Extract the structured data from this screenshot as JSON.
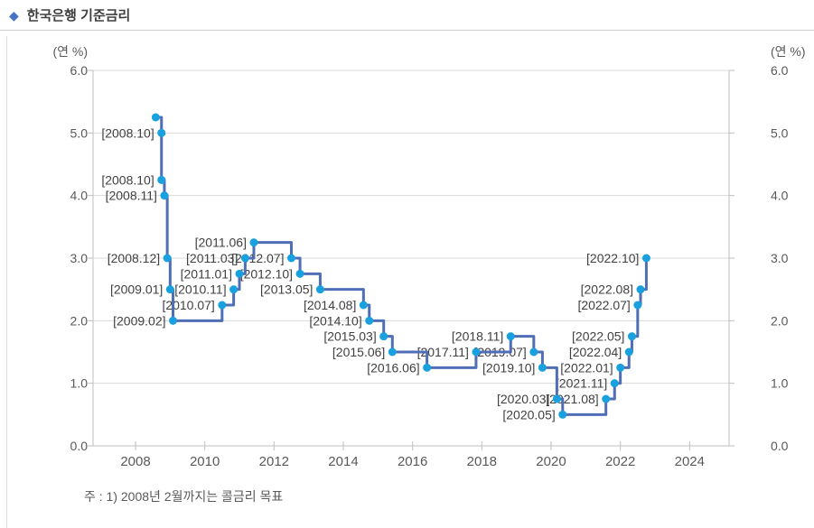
{
  "header": {
    "icon": "diamond-icon",
    "title": "한국은행 기준금리"
  },
  "footnote": "주 : 1) 2008년 2월까지는 콜금리 목표",
  "chart_data": {
    "type": "line",
    "subtype": "step-after",
    "title": "한국은행 기준금리",
    "y_unit_label": "(연 %)",
    "xlabel": "",
    "ylabel": "(연 %)",
    "ylim": [
      0.0,
      6.0
    ],
    "yticks": [
      0,
      1,
      2,
      3,
      4,
      5,
      6
    ],
    "ytick_labels": [
      "0.0",
      "1.0",
      "2.0",
      "3.0",
      "4.0",
      "5.0",
      "6.0"
    ],
    "xtick_labels": [
      "2008",
      "2010",
      "2012",
      "2014",
      "2016",
      "2018",
      "2020",
      "2022",
      "2024"
    ],
    "grid": "horizontal",
    "legend": "none",
    "dual_y_axis": true,
    "colors": {
      "line": "#4f6eb5",
      "marker": "#18a0df",
      "grid": "#d9d9d9",
      "axis": "#bfbfbf",
      "axis_text": "#595959",
      "label_text": "#404040",
      "title_diamond": "#4472c4"
    },
    "points": [
      {
        "date": "2008.08",
        "value": 5.25,
        "label": ""
      },
      {
        "date": "2008.10",
        "value": 5.0,
        "label": "[2008.10]"
      },
      {
        "date": "2008.10",
        "value": 4.25,
        "label": "[2008.10]"
      },
      {
        "date": "2008.11",
        "value": 4.0,
        "label": "[2008.11]"
      },
      {
        "date": "2008.12",
        "value": 3.0,
        "label": "[2008.12]"
      },
      {
        "date": "2009.01",
        "value": 2.5,
        "label": "[2009.01]"
      },
      {
        "date": "2009.02",
        "value": 2.0,
        "label": "[2009.02]"
      },
      {
        "date": "2010.07",
        "value": 2.25,
        "label": "[2010.07]"
      },
      {
        "date": "2010.11",
        "value": 2.5,
        "label": "[2010.11]"
      },
      {
        "date": "2011.01",
        "value": 2.75,
        "label": "[2011.01]"
      },
      {
        "date": "2011.03",
        "value": 3.0,
        "label": "[2011.03]"
      },
      {
        "date": "2011.06",
        "value": 3.25,
        "label": "[2011.06]"
      },
      {
        "date": "2012.07",
        "value": 3.0,
        "label": "[2012.07]"
      },
      {
        "date": "2012.10",
        "value": 2.75,
        "label": "[2012.10]"
      },
      {
        "date": "2013.05",
        "value": 2.5,
        "label": "[2013.05]"
      },
      {
        "date": "2014.08",
        "value": 2.25,
        "label": "[2014.08]"
      },
      {
        "date": "2014.10",
        "value": 2.0,
        "label": "[2014.10]"
      },
      {
        "date": "2015.03",
        "value": 1.75,
        "label": "[2015.03]"
      },
      {
        "date": "2015.06",
        "value": 1.5,
        "label": "[2015.06]"
      },
      {
        "date": "2016.06",
        "value": 1.25,
        "label": "[2016.06]"
      },
      {
        "date": "2017.11",
        "value": 1.5,
        "label": "[2017.11]"
      },
      {
        "date": "2018.11",
        "value": 1.75,
        "label": "[2018.11]"
      },
      {
        "date": "2019.07",
        "value": 1.5,
        "label": "[2019.07]"
      },
      {
        "date": "2019.10",
        "value": 1.25,
        "label": "[2019.10]"
      },
      {
        "date": "2020.03",
        "value": 0.75,
        "label": "[2020.03]"
      },
      {
        "date": "2020.05",
        "value": 0.5,
        "label": "[2020.05]"
      },
      {
        "date": "2021.08",
        "value": 0.75,
        "label": "[2021.08]"
      },
      {
        "date": "2021.11",
        "value": 1.0,
        "label": "[2021.11]"
      },
      {
        "date": "2022.01",
        "value": 1.25,
        "label": "[2022.01]"
      },
      {
        "date": "2022.04",
        "value": 1.5,
        "label": "[2022.04]"
      },
      {
        "date": "2022.05",
        "value": 1.75,
        "label": "[2022.05]"
      },
      {
        "date": "2022.07",
        "value": 2.25,
        "label": "[2022.07]"
      },
      {
        "date": "2022.08",
        "value": 2.5,
        "label": "[2022.08]"
      },
      {
        "date": "2022.10",
        "value": 3.0,
        "label": "[2022.10]"
      }
    ]
  }
}
